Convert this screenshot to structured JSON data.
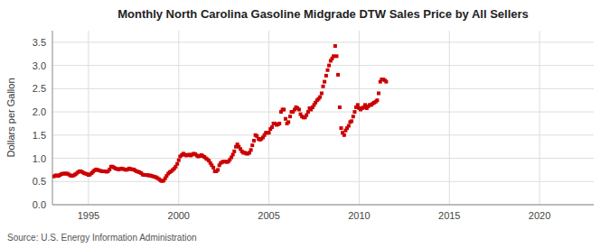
{
  "chart_data": {
    "type": "scatter",
    "title": "Monthly North Carolina Gasoline Midgrade DTW Sales Price by All Sellers",
    "y_label": "Dollars per Gallon",
    "annotations": [
      "Source: U.S. Energy Information Administration"
    ],
    "color": "#cc0000",
    "marker": "square",
    "grid": true,
    "xlim": [
      1993,
      2023
    ],
    "ylim": [
      0,
      3.75
    ],
    "xticks": [
      1995,
      2000,
      2005,
      2010,
      2015,
      2020
    ],
    "yticks": [
      {
        "value": 0,
        "label": "0.0"
      },
      0.5,
      {
        "value": 1,
        "label": "1.0"
      },
      1.5,
      {
        "value": 2,
        "label": "2.0"
      },
      2.5,
      {
        "value": 3,
        "label": "3.0"
      },
      3.5
    ],
    "x": [
      1993.08,
      1993.17,
      1993.25,
      1993.33,
      1993.42,
      1993.5,
      1993.58,
      1993.67,
      1993.75,
      1993.83,
      1993.92,
      1994,
      1994.08,
      1994.17,
      1994.25,
      1994.33,
      1994.42,
      1994.5,
      1994.58,
      1994.67,
      1994.75,
      1994.83,
      1994.92,
      1995,
      1995.08,
      1995.17,
      1995.25,
      1995.33,
      1995.42,
      1995.5,
      1995.58,
      1995.67,
      1995.75,
      1995.83,
      1995.92,
      1996,
      1996.08,
      1996.17,
      1996.25,
      1996.33,
      1996.42,
      1996.5,
      1996.58,
      1996.67,
      1996.75,
      1996.83,
      1996.92,
      1997,
      1997.08,
      1997.17,
      1997.25,
      1997.33,
      1997.42,
      1997.5,
      1997.58,
      1997.67,
      1997.75,
      1997.83,
      1997.92,
      1998,
      1998.08,
      1998.17,
      1998.25,
      1998.33,
      1998.42,
      1998.5,
      1998.58,
      1998.67,
      1998.75,
      1998.83,
      1998.92,
      1999,
      1999.08,
      1999.17,
      1999.25,
      1999.33,
      1999.42,
      1999.5,
      1999.58,
      1999.67,
      1999.75,
      1999.83,
      1999.92,
      2000,
      2000.08,
      2000.17,
      2000.25,
      2000.33,
      2000.42,
      2000.5,
      2000.58,
      2000.67,
      2000.75,
      2000.83,
      2000.92,
      2001,
      2001.08,
      2001.17,
      2001.25,
      2001.33,
      2001.42,
      2001.5,
      2001.58,
      2001.67,
      2001.75,
      2001.83,
      2001.92,
      2002,
      2002.08,
      2002.17,
      2002.25,
      2002.33,
      2002.42,
      2002.5,
      2002.58,
      2002.67,
      2002.75,
      2002.83,
      2002.92,
      2003,
      2003.08,
      2003.17,
      2003.25,
      2003.33,
      2003.42,
      2003.5,
      2003.58,
      2003.67,
      2003.75,
      2003.83,
      2003.92,
      2004,
      2004.08,
      2004.17,
      2004.25,
      2004.33,
      2004.42,
      2004.5,
      2004.58,
      2004.67,
      2004.75,
      2004.83,
      2004.92,
      2005,
      2005.08,
      2005.17,
      2005.25,
      2005.33,
      2005.42,
      2005.5,
      2005.58,
      2005.67,
      2005.75,
      2005.83,
      2005.92,
      2006,
      2006.08,
      2006.17,
      2006.25,
      2006.33,
      2006.42,
      2006.5,
      2006.58,
      2006.67,
      2006.75,
      2006.83,
      2006.92,
      2007,
      2007.08,
      2007.17,
      2007.25,
      2007.33,
      2007.42,
      2007.5,
      2007.58,
      2007.67,
      2007.75,
      2007.83,
      2007.92,
      2008,
      2008.08,
      2008.17,
      2008.25,
      2008.33,
      2008.42,
      2008.5,
      2008.58,
      2008.67,
      2008.75,
      2008.83,
      2008.92,
      2009,
      2009.08,
      2009.17,
      2009.25,
      2009.33,
      2009.42,
      2009.5,
      2009.58,
      2009.67,
      2009.75,
      2009.83,
      2009.92,
      2010,
      2010.08,
      2010.17,
      2010.25,
      2010.33,
      2010.42,
      2010.5,
      2010.58,
      2010.67,
      2010.75,
      2010.83,
      2010.92,
      2011,
      2011.08,
      2011.17,
      2011.25,
      2011.33,
      2011.42,
      2011.5
    ],
    "values": [
      0.61,
      0.63,
      0.63,
      0.62,
      0.64,
      0.66,
      0.67,
      0.67,
      0.67,
      0.67,
      0.65,
      0.63,
      0.62,
      0.63,
      0.65,
      0.67,
      0.7,
      0.72,
      0.72,
      0.7,
      0.68,
      0.67,
      0.66,
      0.64,
      0.65,
      0.68,
      0.71,
      0.74,
      0.76,
      0.75,
      0.74,
      0.73,
      0.72,
      0.72,
      0.72,
      0.71,
      0.72,
      0.76,
      0.82,
      0.82,
      0.8,
      0.78,
      0.77,
      0.76,
      0.77,
      0.78,
      0.77,
      0.76,
      0.75,
      0.76,
      0.78,
      0.77,
      0.76,
      0.76,
      0.74,
      0.72,
      0.71,
      0.7,
      0.68,
      0.65,
      0.64,
      0.64,
      0.64,
      0.63,
      0.63,
      0.62,
      0.61,
      0.6,
      0.59,
      0.57,
      0.55,
      0.52,
      0.51,
      0.52,
      0.57,
      0.62,
      0.67,
      0.7,
      0.72,
      0.75,
      0.78,
      0.82,
      0.88,
      0.96,
      1.04,
      1.07,
      1.1,
      1.08,
      1.06,
      1.07,
      1.08,
      1.06,
      1.08,
      1.1,
      1.09,
      1.06,
      1.04,
      1.05,
      1.07,
      1.05,
      1.03,
      1.0,
      0.98,
      0.95,
      0.9,
      0.85,
      0.8,
      0.72,
      0.72,
      0.75,
      0.85,
      0.9,
      0.92,
      0.93,
      0.93,
      0.92,
      0.93,
      0.97,
      1.02,
      1.08,
      1.15,
      1.25,
      1.3,
      1.25,
      1.2,
      1.15,
      1.12,
      1.12,
      1.1,
      1.1,
      1.12,
      1.18,
      1.28,
      1.38,
      1.5,
      1.48,
      1.42,
      1.4,
      1.42,
      1.45,
      1.5,
      1.55,
      1.55,
      1.55,
      1.63,
      1.67,
      1.75,
      1.75,
      1.72,
      1.73,
      1.75,
      2.0,
      2.05,
      2.05,
      1.85,
      1.75,
      1.78,
      1.9,
      2.0,
      2.0,
      2.05,
      2.1,
      2.08,
      2.05,
      1.95,
      1.9,
      1.88,
      1.88,
      1.93,
      2.0,
      2.08,
      2.05,
      2.1,
      2.15,
      2.2,
      2.25,
      2.28,
      2.32,
      2.4,
      2.55,
      2.65,
      2.78,
      2.9,
      3.0,
      3.1,
      3.15,
      3.2,
      3.42,
      3.2,
      2.8,
      2.1,
      1.65,
      1.55,
      1.5,
      1.6,
      1.65,
      1.7,
      1.78,
      1.8,
      1.9,
      2.0,
      2.1,
      2.15,
      2.08,
      2.05,
      2.08,
      2.1,
      2.15,
      2.08,
      2.12,
      2.15,
      2.15,
      2.18,
      2.2,
      2.22,
      2.25,
      2.4,
      2.65,
      2.7,
      2.7,
      2.68,
      2.65
    ]
  }
}
